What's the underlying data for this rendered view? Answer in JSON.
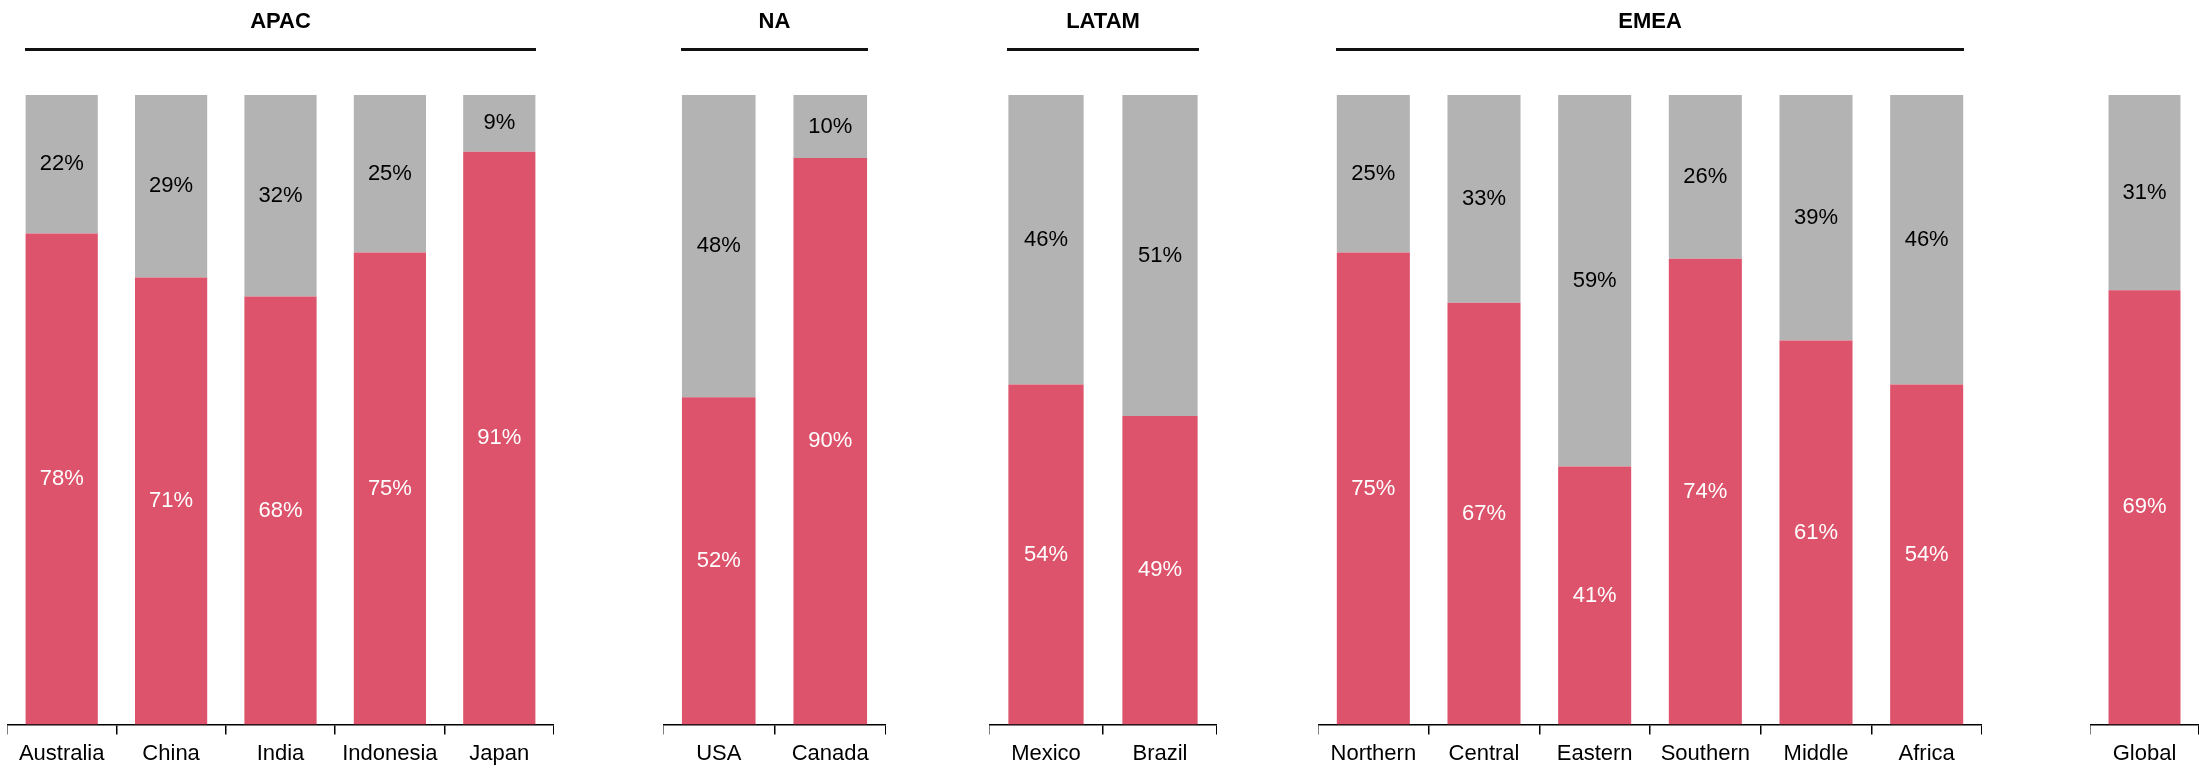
{
  "chart_data": [
    {
      "type": "bar",
      "stacked": true,
      "title": "APAC",
      "categories": [
        "Australia",
        "China",
        "India",
        "Indonesia",
        "Japan"
      ],
      "series": [
        {
          "color": "#dc536b",
          "values": [
            78,
            71,
            68,
            75,
            91
          ],
          "value_labels": [
            "78%",
            "71%",
            "68%",
            "75%",
            "91%"
          ]
        },
        {
          "color": "#b3b3b3",
          "values": [
            22,
            29,
            32,
            25,
            9
          ],
          "value_labels": [
            "22%",
            "29%",
            "32%",
            "25%",
            "9%"
          ]
        }
      ]
    },
    {
      "type": "bar",
      "stacked": true,
      "title": "NA",
      "categories": [
        "USA",
        "Canada"
      ],
      "series": [
        {
          "color": "#dc536b",
          "values": [
            52,
            90
          ],
          "value_labels": [
            "52%",
            "90%"
          ]
        },
        {
          "color": "#b3b3b3",
          "values": [
            48,
            10
          ],
          "value_labels": [
            "48%",
            "10%"
          ]
        }
      ]
    },
    {
      "type": "bar",
      "stacked": true,
      "title": "LATAM",
      "categories": [
        "Mexico",
        "Brazil"
      ],
      "series": [
        {
          "color": "#dc536b",
          "values": [
            54,
            49
          ],
          "value_labels": [
            "54%",
            "49%"
          ]
        },
        {
          "color": "#b3b3b3",
          "values": [
            46,
            51
          ],
          "value_labels": [
            "46%",
            "51%"
          ]
        }
      ]
    },
    {
      "type": "bar",
      "stacked": true,
      "title": "EMEA",
      "categories": [
        "Northern",
        "Central",
        "Eastern",
        "Southern",
        "Middle",
        "Africa"
      ],
      "series": [
        {
          "color": "#dc536b",
          "values": [
            75,
            67,
            41,
            74,
            61,
            54
          ],
          "value_labels": [
            "75%",
            "67%",
            "41%",
            "74%",
            "61%",
            "54%"
          ]
        },
        {
          "color": "#b3b3b3",
          "values": [
            25,
            33,
            59,
            26,
            39,
            46
          ],
          "value_labels": [
            "25%",
            "33%",
            "59%",
            "26%",
            "39%",
            "46%"
          ]
        }
      ]
    },
    {
      "type": "bar",
      "stacked": true,
      "categories": [
        "Global"
      ],
      "series": [
        {
          "color": "#dc536b",
          "values": [
            69
          ],
          "value_labels": [
            "69%"
          ]
        },
        {
          "color": "#b3b3b3",
          "values": [
            31
          ],
          "value_labels": [
            "31%"
          ]
        }
      ]
    }
  ]
}
